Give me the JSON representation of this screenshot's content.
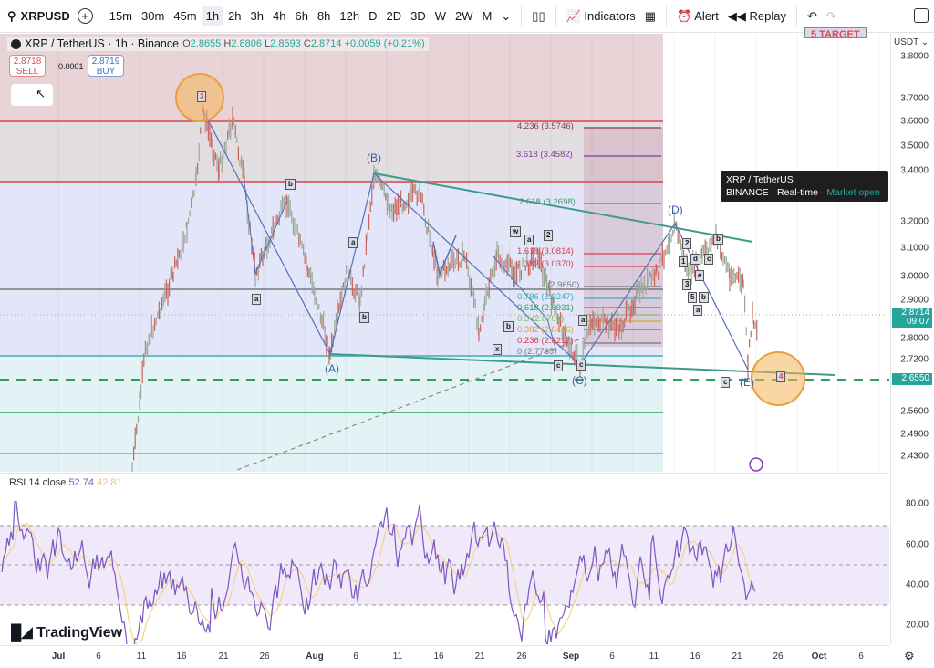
{
  "toolbar": {
    "symbol": "XRPUSD",
    "intervals": [
      "15m",
      "30m",
      "45m",
      "1h",
      "2h",
      "3h",
      "4h",
      "6h",
      "8h",
      "12h",
      "D",
      "2D",
      "3D",
      "W",
      "2W",
      "M"
    ],
    "active_interval": "1h",
    "indicators": "Indicators",
    "alert": "Alert",
    "replay": "Replay"
  },
  "legend": {
    "title": "XRP / TetherUS · 1h · Binance",
    "o_label": "O",
    "o": "2.8655",
    "h_label": "H",
    "h": "2.8806",
    "l_label": "L",
    "l": "2.8593",
    "c_label": "C",
    "c": "2.8714",
    "change": "+0.0059 (+0.21%)"
  },
  "trade": {
    "sell_price": "2.8718",
    "sell_label": "SELL",
    "spread": "0.0001",
    "buy_price": "2.8719",
    "buy_label": "BUY"
  },
  "currency": "USDT",
  "price_ticks": [
    "3.8000",
    "3.7000",
    "3.6000",
    "3.5000",
    "3.4000",
    "3.2000",
    "3.1000",
    "3.0000",
    "2.9000",
    "2.8000",
    "2.7200",
    "2.5600",
    "2.4900",
    "2.4300"
  ],
  "current_price": {
    "value": "2.8714",
    "countdown": "09:07",
    "color": "#26a69a"
  },
  "target_price": "2.6550",
  "target_label": "5 TARGET",
  "tooltip": {
    "title": "XRP / TetherUS",
    "exchange": "BINANCE",
    "rt": "Real-time",
    "status": "Market open"
  },
  "fib_levels": [
    "4.236 (3.5746)",
    "3.618 (3.4582)",
    "2.618 (3.2698)",
    "1.618 (3.0814)",
    "1.382 (3.0370)",
    "(2.9650)",
    "0.786 (2.9247)",
    "0.618 (2.8931)",
    "0.5 (2.8709)",
    "0.382 (2.8486)",
    "0.236 (2.8217)",
    "0 (2.7765)"
  ],
  "waves": [
    "(A)",
    "(B)",
    "(C)",
    "(D)",
    "(E)"
  ],
  "sub_labels": [
    "3",
    "b",
    "a",
    "a",
    "b",
    "x",
    "b",
    "w",
    "a",
    "2",
    "c",
    "c",
    "a",
    "2",
    "1",
    "d",
    "e",
    "c",
    "3",
    "5",
    "b",
    "a",
    "b",
    "4"
  ],
  "rsi": {
    "title": "RSI 14 close",
    "value": "52.74",
    "ma": "42.81",
    "ticks": [
      "80.00",
      "60.00",
      "40.00",
      "20.00"
    ],
    "rsi_color": "#7e57c2",
    "ma_color": "#f5d38a"
  },
  "dates": [
    "Jul",
    "6",
    "11",
    "16",
    "21",
    "26",
    "Aug",
    "6",
    "11",
    "16",
    "21",
    "26",
    "Sep",
    "6",
    "11",
    "16",
    "21",
    "26",
    "Oct",
    "6"
  ],
  "logo": "TradingView"
}
